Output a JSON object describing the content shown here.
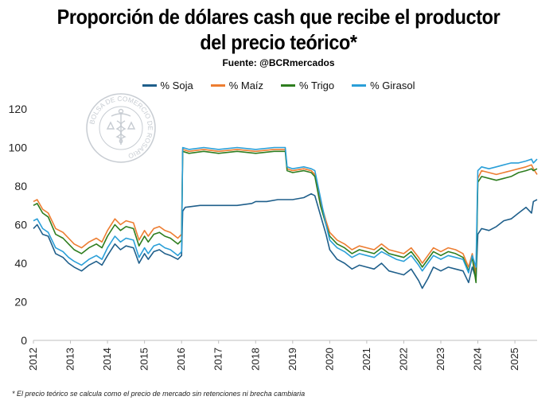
{
  "title_line1": "Proporción de dólares cash que recibe el productor",
  "title_line2": "del precio teórico*",
  "source": "Fuente: @BCRmercados",
  "footnote": "* El precio teórico se calcula como el precio de mercado sin retenciones ni brecha cambiaria",
  "watermark": {
    "text": "BOLSA DE COMERCIO DE ROSARIO",
    "icon": "caduceus-icon",
    "color": "#9aa3ae"
  },
  "chart_data": {
    "type": "line",
    "xlim": [
      2012,
      2025.6
    ],
    "ylim": [
      0,
      120
    ],
    "yticks": [
      0,
      20,
      40,
      60,
      80,
      100,
      120
    ],
    "xticks": [
      "2012",
      "2013",
      "2014",
      "2015",
      "2016",
      "2017",
      "2018",
      "2019",
      "2020",
      "2021",
      "2022",
      "2023",
      "2024",
      "2025"
    ],
    "grid": false,
    "legend_position": "top",
    "series": [
      {
        "name": "% Soja",
        "color": "#1f5f8b",
        "points": [
          [
            2012.0,
            58
          ],
          [
            2012.1,
            60
          ],
          [
            2012.25,
            55
          ],
          [
            2012.4,
            54
          ],
          [
            2012.6,
            45
          ],
          [
            2012.8,
            43
          ],
          [
            2012.95,
            40
          ],
          [
            2013.1,
            38
          ],
          [
            2013.3,
            36
          ],
          [
            2013.5,
            39
          ],
          [
            2013.7,
            41
          ],
          [
            2013.85,
            39
          ],
          [
            2014.0,
            44
          ],
          [
            2014.2,
            50
          ],
          [
            2014.35,
            47
          ],
          [
            2014.5,
            49
          ],
          [
            2014.7,
            48
          ],
          [
            2014.85,
            40
          ],
          [
            2015.0,
            45
          ],
          [
            2015.1,
            42
          ],
          [
            2015.25,
            46
          ],
          [
            2015.4,
            47
          ],
          [
            2015.55,
            45
          ],
          [
            2015.7,
            44
          ],
          [
            2015.9,
            42
          ],
          [
            2016.0,
            44
          ],
          [
            2016.03,
            67
          ],
          [
            2016.1,
            69
          ],
          [
            2016.5,
            70
          ],
          [
            2017.0,
            70
          ],
          [
            2017.5,
            70
          ],
          [
            2017.9,
            71
          ],
          [
            2018.0,
            72
          ],
          [
            2018.3,
            72
          ],
          [
            2018.6,
            73
          ],
          [
            2018.8,
            73
          ],
          [
            2019.0,
            73
          ],
          [
            2019.3,
            74
          ],
          [
            2019.5,
            76
          ],
          [
            2019.6,
            75
          ],
          [
            2019.75,
            65
          ],
          [
            2019.9,
            55
          ],
          [
            2020.0,
            47
          ],
          [
            2020.2,
            42
          ],
          [
            2020.4,
            40
          ],
          [
            2020.6,
            37
          ],
          [
            2020.8,
            39
          ],
          [
            2021.0,
            38
          ],
          [
            2021.2,
            37
          ],
          [
            2021.4,
            40
          ],
          [
            2021.6,
            36
          ],
          [
            2021.8,
            35
          ],
          [
            2022.0,
            34
          ],
          [
            2022.2,
            37
          ],
          [
            2022.4,
            31
          ],
          [
            2022.5,
            27
          ],
          [
            2022.65,
            32
          ],
          [
            2022.8,
            38
          ],
          [
            2023.0,
            36
          ],
          [
            2023.2,
            38
          ],
          [
            2023.4,
            37
          ],
          [
            2023.6,
            36
          ],
          [
            2023.75,
            30
          ],
          [
            2023.85,
            38
          ],
          [
            2023.95,
            32
          ],
          [
            2024.0,
            55
          ],
          [
            2024.1,
            58
          ],
          [
            2024.3,
            57
          ],
          [
            2024.5,
            59
          ],
          [
            2024.7,
            62
          ],
          [
            2024.9,
            63
          ],
          [
            2025.1,
            66
          ],
          [
            2025.3,
            69
          ],
          [
            2025.45,
            66
          ],
          [
            2025.5,
            72
          ],
          [
            2025.6,
            73
          ]
        ]
      },
      {
        "name": "% Maíz",
        "color": "#ed7d31",
        "points": [
          [
            2012.0,
            72
          ],
          [
            2012.1,
            73
          ],
          [
            2012.25,
            68
          ],
          [
            2012.4,
            66
          ],
          [
            2012.6,
            58
          ],
          [
            2012.8,
            56
          ],
          [
            2012.95,
            53
          ],
          [
            2013.1,
            50
          ],
          [
            2013.3,
            48
          ],
          [
            2013.5,
            51
          ],
          [
            2013.7,
            53
          ],
          [
            2013.85,
            51
          ],
          [
            2014.0,
            57
          ],
          [
            2014.2,
            63
          ],
          [
            2014.35,
            60
          ],
          [
            2014.5,
            62
          ],
          [
            2014.7,
            61
          ],
          [
            2014.85,
            52
          ],
          [
            2015.0,
            57
          ],
          [
            2015.1,
            54
          ],
          [
            2015.25,
            58
          ],
          [
            2015.4,
            59
          ],
          [
            2015.55,
            57
          ],
          [
            2015.7,
            56
          ],
          [
            2015.9,
            53
          ],
          [
            2016.0,
            55
          ],
          [
            2016.03,
            99
          ],
          [
            2016.2,
            98
          ],
          [
            2016.6,
            99
          ],
          [
            2017.0,
            98
          ],
          [
            2017.5,
            99
          ],
          [
            2018.0,
            98
          ],
          [
            2018.5,
            99
          ],
          [
            2018.8,
            99
          ],
          [
            2018.85,
            89
          ],
          [
            2019.0,
            88
          ],
          [
            2019.3,
            89
          ],
          [
            2019.5,
            88
          ],
          [
            2019.6,
            86
          ],
          [
            2019.75,
            72
          ],
          [
            2019.9,
            62
          ],
          [
            2020.0,
            56
          ],
          [
            2020.2,
            52
          ],
          [
            2020.4,
            50
          ],
          [
            2020.6,
            47
          ],
          [
            2020.8,
            49
          ],
          [
            2021.0,
            48
          ],
          [
            2021.2,
            47
          ],
          [
            2021.4,
            50
          ],
          [
            2021.6,
            47
          ],
          [
            2021.8,
            46
          ],
          [
            2022.0,
            45
          ],
          [
            2022.2,
            48
          ],
          [
            2022.4,
            43
          ],
          [
            2022.5,
            40
          ],
          [
            2022.65,
            44
          ],
          [
            2022.8,
            48
          ],
          [
            2023.0,
            46
          ],
          [
            2023.2,
            48
          ],
          [
            2023.4,
            47
          ],
          [
            2023.6,
            45
          ],
          [
            2023.75,
            38
          ],
          [
            2023.85,
            45
          ],
          [
            2023.95,
            34
          ],
          [
            2024.0,
            84
          ],
          [
            2024.1,
            88
          ],
          [
            2024.3,
            87
          ],
          [
            2024.5,
            86
          ],
          [
            2024.7,
            87
          ],
          [
            2024.9,
            88
          ],
          [
            2025.1,
            89
          ],
          [
            2025.3,
            90
          ],
          [
            2025.45,
            91
          ],
          [
            2025.5,
            89
          ],
          [
            2025.6,
            86
          ]
        ]
      },
      {
        "name": "% Trigo",
        "color": "#2e7d1f",
        "points": [
          [
            2012.0,
            70
          ],
          [
            2012.1,
            71
          ],
          [
            2012.25,
            66
          ],
          [
            2012.4,
            64
          ],
          [
            2012.6,
            55
          ],
          [
            2012.8,
            53
          ],
          [
            2012.95,
            50
          ],
          [
            2013.1,
            47
          ],
          [
            2013.3,
            45
          ],
          [
            2013.5,
            48
          ],
          [
            2013.7,
            50
          ],
          [
            2013.85,
            48
          ],
          [
            2014.0,
            54
          ],
          [
            2014.2,
            60
          ],
          [
            2014.35,
            57
          ],
          [
            2014.5,
            59
          ],
          [
            2014.7,
            58
          ],
          [
            2014.85,
            49
          ],
          [
            2015.0,
            54
          ],
          [
            2015.1,
            51
          ],
          [
            2015.25,
            55
          ],
          [
            2015.4,
            56
          ],
          [
            2015.55,
            54
          ],
          [
            2015.7,
            53
          ],
          [
            2015.9,
            50
          ],
          [
            2016.0,
            52
          ],
          [
            2016.03,
            98
          ],
          [
            2016.2,
            97
          ],
          [
            2016.6,
            98
          ],
          [
            2017.0,
            97
          ],
          [
            2017.5,
            98
          ],
          [
            2018.0,
            97
          ],
          [
            2018.5,
            98
          ],
          [
            2018.8,
            98
          ],
          [
            2018.85,
            88
          ],
          [
            2019.0,
            87
          ],
          [
            2019.3,
            88
          ],
          [
            2019.5,
            87
          ],
          [
            2019.6,
            85
          ],
          [
            2019.75,
            70
          ],
          [
            2019.9,
            60
          ],
          [
            2020.0,
            54
          ],
          [
            2020.2,
            50
          ],
          [
            2020.4,
            48
          ],
          [
            2020.6,
            45
          ],
          [
            2020.8,
            47
          ],
          [
            2021.0,
            46
          ],
          [
            2021.2,
            45
          ],
          [
            2021.4,
            48
          ],
          [
            2021.6,
            45
          ],
          [
            2021.8,
            44
          ],
          [
            2022.0,
            43
          ],
          [
            2022.2,
            46
          ],
          [
            2022.4,
            41
          ],
          [
            2022.5,
            38
          ],
          [
            2022.65,
            42
          ],
          [
            2022.8,
            46
          ],
          [
            2023.0,
            44
          ],
          [
            2023.2,
            46
          ],
          [
            2023.4,
            45
          ],
          [
            2023.6,
            43
          ],
          [
            2023.75,
            36
          ],
          [
            2023.85,
            43
          ],
          [
            2023.95,
            30
          ],
          [
            2024.0,
            82
          ],
          [
            2024.1,
            85
          ],
          [
            2024.3,
            84
          ],
          [
            2024.5,
            83
          ],
          [
            2024.7,
            84
          ],
          [
            2024.9,
            85
          ],
          [
            2025.1,
            87
          ],
          [
            2025.3,
            88
          ],
          [
            2025.45,
            89
          ],
          [
            2025.5,
            88
          ],
          [
            2025.6,
            89
          ]
        ]
      },
      {
        "name": "% Girasol",
        "color": "#2a9fd8",
        "points": [
          [
            2012.0,
            62
          ],
          [
            2012.1,
            63
          ],
          [
            2012.25,
            58
          ],
          [
            2012.4,
            56
          ],
          [
            2012.6,
            48
          ],
          [
            2012.8,
            46
          ],
          [
            2012.95,
            43
          ],
          [
            2013.1,
            41
          ],
          [
            2013.3,
            39
          ],
          [
            2013.5,
            42
          ],
          [
            2013.7,
            44
          ],
          [
            2013.85,
            42
          ],
          [
            2014.0,
            48
          ],
          [
            2014.2,
            54
          ],
          [
            2014.35,
            51
          ],
          [
            2014.5,
            53
          ],
          [
            2014.7,
            52
          ],
          [
            2014.85,
            43
          ],
          [
            2015.0,
            48
          ],
          [
            2015.1,
            45
          ],
          [
            2015.25,
            49
          ],
          [
            2015.4,
            50
          ],
          [
            2015.55,
            48
          ],
          [
            2015.7,
            47
          ],
          [
            2015.9,
            44
          ],
          [
            2016.0,
            46
          ],
          [
            2016.03,
            100
          ],
          [
            2016.2,
            99
          ],
          [
            2016.6,
            100
          ],
          [
            2017.0,
            99
          ],
          [
            2017.5,
            100
          ],
          [
            2018.0,
            99
          ],
          [
            2018.5,
            100
          ],
          [
            2018.8,
            100
          ],
          [
            2018.85,
            90
          ],
          [
            2019.0,
            89
          ],
          [
            2019.3,
            90
          ],
          [
            2019.5,
            89
          ],
          [
            2019.6,
            88
          ],
          [
            2019.75,
            74
          ],
          [
            2019.9,
            60
          ],
          [
            2020.0,
            52
          ],
          [
            2020.2,
            48
          ],
          [
            2020.4,
            46
          ],
          [
            2020.6,
            43
          ],
          [
            2020.8,
            45
          ],
          [
            2021.0,
            44
          ],
          [
            2021.2,
            43
          ],
          [
            2021.4,
            46
          ],
          [
            2021.6,
            44
          ],
          [
            2021.8,
            42
          ],
          [
            2022.0,
            41
          ],
          [
            2022.2,
            44
          ],
          [
            2022.4,
            39
          ],
          [
            2022.5,
            36
          ],
          [
            2022.65,
            40
          ],
          [
            2022.8,
            44
          ],
          [
            2023.0,
            42
          ],
          [
            2023.2,
            44
          ],
          [
            2023.4,
            43
          ],
          [
            2023.6,
            42
          ],
          [
            2023.75,
            35
          ],
          [
            2023.85,
            44
          ],
          [
            2023.95,
            38
          ],
          [
            2024.0,
            88
          ],
          [
            2024.1,
            90
          ],
          [
            2024.3,
            89
          ],
          [
            2024.5,
            90
          ],
          [
            2024.7,
            91
          ],
          [
            2024.9,
            92
          ],
          [
            2025.1,
            92
          ],
          [
            2025.3,
            93
          ],
          [
            2025.45,
            94
          ],
          [
            2025.5,
            92
          ],
          [
            2025.6,
            94
          ]
        ]
      }
    ]
  }
}
